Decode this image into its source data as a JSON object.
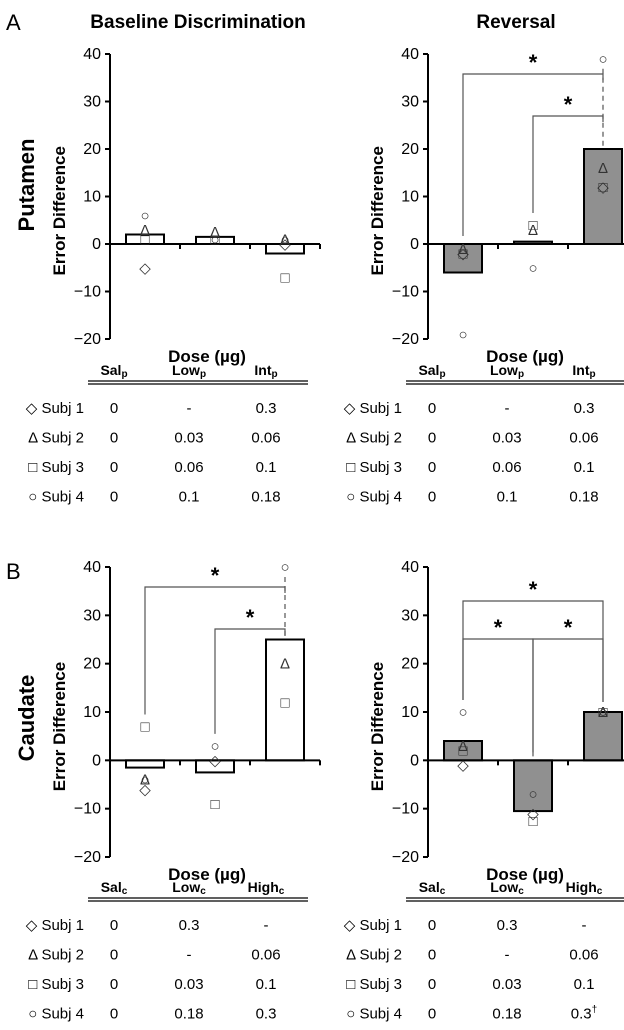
{
  "panel_letters": [
    "A",
    "B"
  ],
  "column_titles": [
    "Baseline Discrimination",
    "Reversal"
  ],
  "row_labels": [
    "Putamen",
    "Caudate"
  ],
  "y_axis_label": "Error Difference",
  "x_axis_label": "Dose (µg)",
  "y_ticks": [
    40,
    30,
    20,
    10,
    0,
    -10,
    -20
  ],
  "marker_glyphs": {
    "subj1": "◇",
    "subj2": "Δ",
    "subj3": "□",
    "subj4": "○"
  },
  "colors": {
    "open_bar": "#ffffff",
    "filled_bar": "#909090",
    "axis": "#000000",
    "bracket": "#555555"
  },
  "chart_data": [
    {
      "type": "bar",
      "region": "Putamen",
      "phase": "Baseline Discrimination",
      "categories": [
        "Salp",
        "Lowp",
        "Intp"
      ],
      "values": [
        2,
        1.5,
        -2
      ],
      "bar_fill": "open",
      "ylim": [
        -20,
        40
      ],
      "subjects": {
        "subj1": [
          -5,
          null,
          0
        ],
        "subj2": [
          3,
          2.5,
          1
        ],
        "subj3": [
          1,
          1,
          -7
        ],
        "subj4": [
          6,
          1,
          1
        ]
      },
      "significance": [],
      "table": {
        "columns": [
          {
            "base": "Sal",
            "sub": "p"
          },
          {
            "base": "Low",
            "sub": "p"
          },
          {
            "base": "Int",
            "sub": "p"
          }
        ],
        "rows": [
          {
            "marker": "◇",
            "label": "Subj 1",
            "values": [
              "0",
              "-",
              "0.3"
            ]
          },
          {
            "marker": "Δ",
            "label": "Subj 2",
            "values": [
              "0",
              "0.03",
              "0.06"
            ]
          },
          {
            "marker": "□",
            "label": "Subj 3",
            "values": [
              "0",
              "0.06",
              "0.1"
            ]
          },
          {
            "marker": "○",
            "label": "Subj 4",
            "values": [
              "0",
              "0.1",
              "0.18"
            ]
          }
        ]
      }
    },
    {
      "type": "bar",
      "region": "Putamen",
      "phase": "Reversal",
      "categories": [
        "Salp",
        "Lowp",
        "Intp"
      ],
      "values": [
        -6,
        0.5,
        20
      ],
      "bar_fill": "filled",
      "ylim": [
        -20,
        40
      ],
      "subjects": {
        "subj1": [
          -2,
          null,
          12
        ],
        "subj2": [
          -1,
          3,
          16
        ],
        "subj3": [
          -2,
          4,
          12
        ],
        "subj4": [
          -19,
          -5,
          39
        ]
      },
      "significance": [
        {
          "from": 0,
          "to": 2,
          "label": "*"
        },
        {
          "from": 1,
          "to": 2,
          "label": "*"
        }
      ],
      "table": {
        "columns": [
          {
            "base": "Sal",
            "sub": "p"
          },
          {
            "base": "Low",
            "sub": "p"
          },
          {
            "base": "Int",
            "sub": "p"
          }
        ],
        "rows": [
          {
            "marker": "◇",
            "label": "Subj 1",
            "values": [
              "0",
              "-",
              "0.3"
            ]
          },
          {
            "marker": "Δ",
            "label": "Subj 2",
            "values": [
              "0",
              "0.03",
              "0.06"
            ]
          },
          {
            "marker": "□",
            "label": "Subj 3",
            "values": [
              "0",
              "0.06",
              "0.1"
            ]
          },
          {
            "marker": "○",
            "label": "Subj 4",
            "values": [
              "0",
              "0.1",
              "0.18"
            ]
          }
        ]
      }
    },
    {
      "type": "bar",
      "region": "Caudate",
      "phase": "Baseline Discrimination",
      "categories": [
        "Salc",
        "Lowc",
        "Highc"
      ],
      "values": [
        -1.5,
        -2.5,
        25
      ],
      "bar_fill": "open",
      "ylim": [
        -20,
        40
      ],
      "subjects": {
        "subj1": [
          -6,
          0,
          null
        ],
        "subj2": [
          -4,
          null,
          20
        ],
        "subj3": [
          7,
          -9,
          12
        ],
        "subj4": [
          -4,
          3,
          40
        ]
      },
      "significance": [
        {
          "from": 0,
          "to": 2,
          "label": "*"
        },
        {
          "from": 1,
          "to": 2,
          "label": "*"
        }
      ],
      "table": {
        "columns": [
          {
            "base": "Sal",
            "sub": "c"
          },
          {
            "base": "Low",
            "sub": "c"
          },
          {
            "base": "High",
            "sub": "c"
          }
        ],
        "rows": [
          {
            "marker": "◇",
            "label": "Subj 1",
            "values": [
              "0",
              "0.3",
              "-"
            ]
          },
          {
            "marker": "Δ",
            "label": "Subj 2",
            "values": [
              "0",
              "-",
              "0.06"
            ]
          },
          {
            "marker": "□",
            "label": "Subj 3",
            "values": [
              "0",
              "0.03",
              "0.1"
            ]
          },
          {
            "marker": "○",
            "label": "Subj 4",
            "values": [
              "0",
              "0.18",
              "0.3"
            ]
          }
        ]
      }
    },
    {
      "type": "bar",
      "region": "Caudate",
      "phase": "Reversal",
      "categories": [
        "Salc",
        "Lowc",
        "Highc"
      ],
      "values": [
        4,
        -10.5,
        10
      ],
      "bar_fill": "filled",
      "ylim": [
        -20,
        40
      ],
      "subjects": {
        "subj1": [
          -1,
          -11,
          null
        ],
        "subj2": [
          3,
          null,
          10
        ],
        "subj3": [
          2,
          -12.5,
          10
        ],
        "subj4": [
          10,
          -7,
          10
        ]
      },
      "significance": [
        {
          "from": 0,
          "to": 2,
          "label": "*"
        },
        {
          "from": 0,
          "to": 1,
          "label": "*"
        },
        {
          "from": 1,
          "to": 2,
          "label": "*"
        }
      ],
      "table": {
        "columns": [
          {
            "base": "Sal",
            "sub": "c"
          },
          {
            "base": "Low",
            "sub": "c"
          },
          {
            "base": "High",
            "sub": "c"
          }
        ],
        "rows": [
          {
            "marker": "◇",
            "label": "Subj 1",
            "values": [
              "0",
              "0.3",
              "-"
            ]
          },
          {
            "marker": "Δ",
            "label": "Subj 2",
            "values": [
              "0",
              "-",
              "0.06"
            ]
          },
          {
            "marker": "□",
            "label": "Subj 3",
            "values": [
              "0",
              "0.03",
              "0.1"
            ]
          },
          {
            "marker": "○",
            "label": "Subj 4",
            "values": [
              "0",
              "0.18",
              "0.3"
            ]
          }
        ],
        "footnote_cell": {
          "row": 3,
          "col": 2,
          "mark": "†"
        }
      }
    }
  ]
}
